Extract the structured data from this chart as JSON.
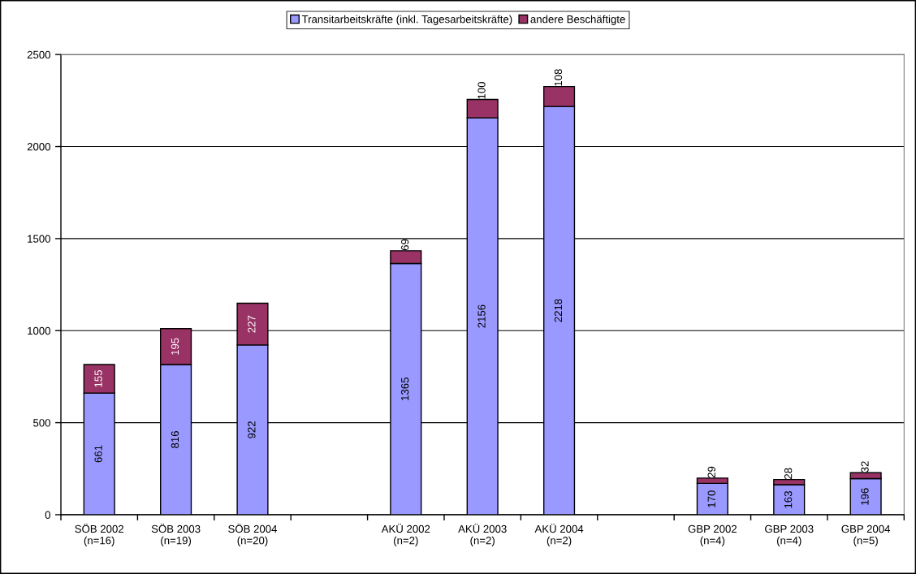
{
  "chart_data": {
    "type": "bar",
    "stacked": true,
    "categories": [
      "SÖB 2002\n(n=16)",
      "SÖB 2003\n(n=19)",
      "SÖB 2004\n(n=20)",
      null,
      "AKÜ 2002\n(n=2)",
      "AKÜ 2003\n(n=2)",
      "AKÜ 2004\n(n=2)",
      null,
      "GBP 2002\n(n=4)",
      "GBP 2003\n(n=4)",
      "GBP 2004\n(n=5)"
    ],
    "series": [
      {
        "name": "Transitarbeitskräfte (inkl. Tagesarbeitskräfte)",
        "color": "#9999ff",
        "values": [
          661,
          816,
          922,
          null,
          1365,
          2156,
          2218,
          null,
          170,
          163,
          196
        ]
      },
      {
        "name": "andere Beschäftigte",
        "color": "#993366",
        "values": [
          155,
          195,
          227,
          null,
          69,
          100,
          108,
          null,
          29,
          28,
          32
        ]
      }
    ],
    "ylim": [
      0,
      2500
    ],
    "yticks": [
      0,
      500,
      1000,
      1500,
      2000,
      2500
    ],
    "grid": "y",
    "legend": "top",
    "data_labels": true
  }
}
